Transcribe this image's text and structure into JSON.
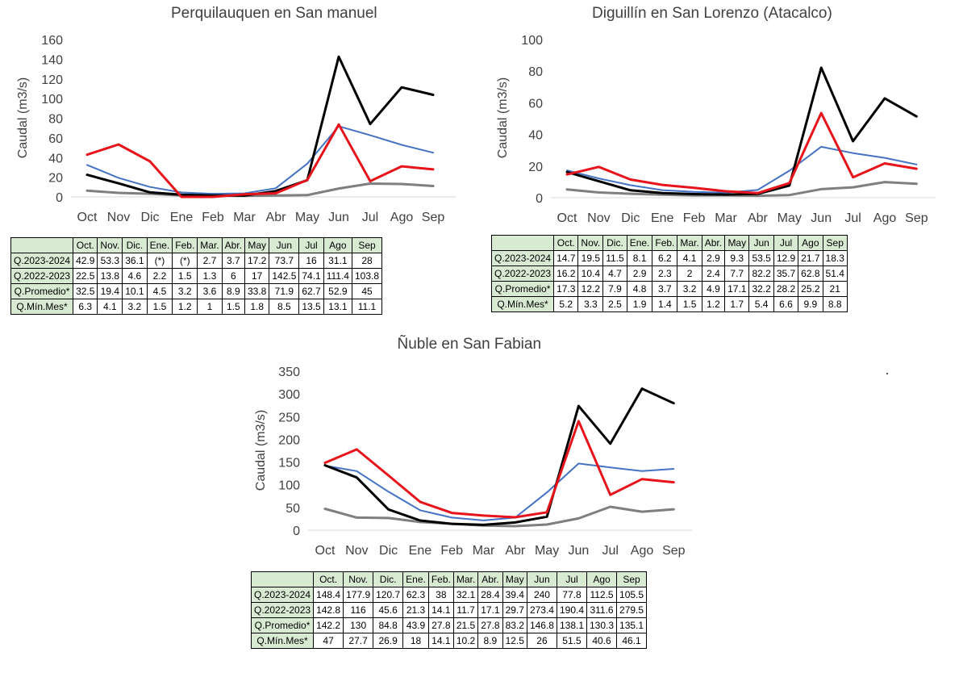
{
  "months": [
    "Oct",
    "Nov",
    "Dic",
    "Ene",
    "Feb",
    "Mar",
    "Abr",
    "May",
    "Jun",
    "Jul",
    "Ago",
    "Sep"
  ],
  "table_headers": [
    "Oct.",
    "Nov.",
    "Dic.",
    "Ene.",
    "Feb.",
    "Mar.",
    "Abr.",
    "May",
    "Jun",
    "Jul",
    "Ago",
    "Sep"
  ],
  "ylabel": "Caudal (m3/s)",
  "colors": {
    "q2023": "#e8141b",
    "q2022": "#000000",
    "prom": "#4472c4",
    "min": "#7f7f7f",
    "header_bg": "#d9ead3"
  },
  "chart_data": [
    {
      "type": "line",
      "title": "Perquilauquen en San manuel",
      "ylabel": "Caudal (m3/s)",
      "ylim": [
        0,
        160
      ],
      "yticks": [
        "0",
        "20",
        "40",
        "60",
        "80",
        "100",
        "120",
        "140",
        "160"
      ],
      "categories": [
        "Oct",
        "Nov",
        "Dic",
        "Ene",
        "Feb",
        "Mar",
        "Abr",
        "May",
        "Jun",
        "Jul",
        "Ago",
        "Sep"
      ],
      "grid": false,
      "series": [
        {
          "name": "Q.2023-2024",
          "color": "#e8141b",
          "values": [
            42.9,
            53.3,
            36.1,
            null,
            null,
            2.7,
            3.7,
            17.2,
            73.7,
            16,
            31.1,
            28
          ],
          "table": [
            "42.9",
            "53.3",
            "36.1",
            "(*)",
            "(*)",
            "2.7",
            "3.7",
            "17.2",
            "73.7",
            "16",
            "31.1",
            "28"
          ]
        },
        {
          "name": "Q.2022-2023",
          "color": "#000000",
          "values": [
            22.5,
            13.8,
            4.6,
            2.2,
            1.5,
            1.3,
            6,
            17,
            142.5,
            74.1,
            111.4,
            103.8
          ],
          "table": [
            "22.5",
            "13.8",
            "4.6",
            "2.2",
            "1.5",
            "1.3",
            "6",
            "17",
            "142.5",
            "74.1",
            "111.4",
            "103.8"
          ]
        },
        {
          "name": "Q.Promedio*",
          "color": "#4472c4",
          "values": [
            32.5,
            19.4,
            10.1,
            4.5,
            3.2,
            3.6,
            8.9,
            33.8,
            71.9,
            62.7,
            52.9,
            45
          ],
          "table": [
            "32.5",
            "19.4",
            "10.1",
            "4.5",
            "3.2",
            "3.6",
            "8.9",
            "33.8",
            "71.9",
            "62.7",
            "52.9",
            "45"
          ]
        },
        {
          "name": "Q.Mín.Mes*",
          "color": "#7f7f7f",
          "values": [
            6.3,
            4.1,
            3.2,
            1.5,
            1.2,
            1,
            1.5,
            1.8,
            8.5,
            13.5,
            13.1,
            11.1
          ],
          "table": [
            "6.3",
            "4.1",
            "3.2",
            "1.5",
            "1.2",
            "1",
            "1.5",
            "1.8",
            "8.5",
            "13.5",
            "13.1",
            "11.1"
          ]
        }
      ]
    },
    {
      "type": "line",
      "title": "Diguillín en San Lorenzo (Atacalco)",
      "ylabel": "Caudal (m3/s)",
      "ylim": [
        0,
        100
      ],
      "yticks": [
        "0",
        "20",
        "40",
        "60",
        "80",
        "100"
      ],
      "categories": [
        "Oct",
        "Nov",
        "Dic",
        "Ene",
        "Feb",
        "Mar",
        "Abr",
        "May",
        "Jun",
        "Jul",
        "Ago",
        "Sep"
      ],
      "grid": false,
      "series": [
        {
          "name": "Q.2023-2024",
          "color": "#e8141b",
          "values": [
            14.7,
            19.5,
            11.5,
            8.1,
            6.2,
            4.1,
            2.9,
            9.3,
            53.5,
            12.9,
            21.7,
            18.3
          ],
          "table": [
            "14.7",
            "19.5",
            "11.5",
            "8.1",
            "6.2",
            "4.1",
            "2.9",
            "9.3",
            "53.5",
            "12.9",
            "21.7",
            "18.3"
          ]
        },
        {
          "name": "Q.2022-2023",
          "color": "#000000",
          "values": [
            16.2,
            10.4,
            4.7,
            2.9,
            2.3,
            2,
            2.4,
            7.7,
            82.2,
            35.7,
            62.8,
            51.4
          ],
          "table": [
            "16.2",
            "10.4",
            "4.7",
            "2.9",
            "2.3",
            "2",
            "2.4",
            "7.7",
            "82.2",
            "35.7",
            "62.8",
            "51.4"
          ]
        },
        {
          "name": "Q.Promedio*",
          "color": "#4472c4",
          "values": [
            17.3,
            12.2,
            7.9,
            4.8,
            3.7,
            3.2,
            4.9,
            17.1,
            32.2,
            28.2,
            25.2,
            21
          ],
          "table": [
            "17.3",
            "12.2",
            "7.9",
            "4.8",
            "3.7",
            "3.2",
            "4.9",
            "17.1",
            "32.2",
            "28.2",
            "25.2",
            "21"
          ]
        },
        {
          "name": "Q.Mín.Mes*",
          "color": "#7f7f7f",
          "values": [
            5.2,
            3.3,
            2.5,
            1.9,
            1.4,
            1.5,
            1.2,
            1.7,
            5.4,
            6.6,
            9.9,
            8.8
          ],
          "table": [
            "5.2",
            "3.3",
            "2.5",
            "1.9",
            "1.4",
            "1.5",
            "1.2",
            "1.7",
            "5.4",
            "6.6",
            "9.9",
            "8.8"
          ]
        }
      ]
    },
    {
      "type": "line",
      "title": "Ñuble en San Fabian",
      "ylabel": "Caudal (m3/s)",
      "ylim": [
        0,
        350
      ],
      "yticks": [
        "0",
        "50",
        "100",
        "150",
        "200",
        "250",
        "300",
        "350"
      ],
      "categories": [
        "Oct",
        "Nov",
        "Dic",
        "Ene",
        "Feb",
        "Mar",
        "Abr",
        "May",
        "Jun",
        "Jul",
        "Ago",
        "Sep"
      ],
      "grid": false,
      "series": [
        {
          "name": "Q.2023-2024",
          "color": "#e8141b",
          "values": [
            148.4,
            177.9,
            120.7,
            62.3,
            38,
            32.1,
            28.4,
            39.4,
            240,
            77.8,
            112.5,
            105.5
          ],
          "table": [
            "148.4",
            "177.9",
            "120.7",
            "62.3",
            "38",
            "32.1",
            "28.4",
            "39.4",
            "240",
            "77.8",
            "112.5",
            "105.5"
          ]
        },
        {
          "name": "Q.2022-2023",
          "color": "#000000",
          "values": [
            142.8,
            116,
            45.6,
            21.3,
            14.1,
            11.7,
            17.1,
            29.7,
            273.4,
            190.4,
            311.6,
            279.5
          ],
          "table": [
            "142.8",
            "116",
            "45.6",
            "21.3",
            "14.1",
            "11.7",
            "17.1",
            "29.7",
            "273.4",
            "190.4",
            "311.6",
            "279.5"
          ]
        },
        {
          "name": "Q.Promedio*",
          "color": "#4472c4",
          "values": [
            142.2,
            130,
            84.8,
            43.9,
            27.8,
            21.5,
            27.8,
            83.2,
            146.8,
            138.1,
            130.3,
            135.1
          ],
          "table": [
            "142.2",
            "130",
            "84.8",
            "43.9",
            "27.8",
            "21.5",
            "27.8",
            "83.2",
            "146.8",
            "138.1",
            "130.3",
            "135.1"
          ]
        },
        {
          "name": "Q.Mín.Mes*",
          "color": "#7f7f7f",
          "values": [
            47,
            27.7,
            26.9,
            18,
            14.1,
            10.2,
            8.9,
            12.5,
            26,
            51.5,
            40.6,
            46.1
          ],
          "table": [
            "47",
            "27.7",
            "26.9",
            "18",
            "14.1",
            "10.2",
            "8.9",
            "12.5",
            "26",
            "51.5",
            "40.6",
            "46.1"
          ]
        }
      ]
    }
  ]
}
